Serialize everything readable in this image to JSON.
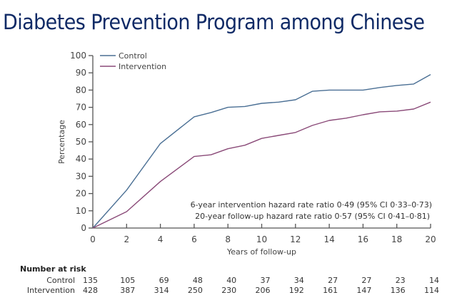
{
  "slide": {
    "title": "Diabetes Prevention Program among Chinese"
  },
  "chart_data": {
    "type": "line",
    "title": "Diabetes Prevention Program among Chinese",
    "xlabel": "Years of follow-up",
    "ylabel": "Percentage",
    "xlim": [
      0,
      20
    ],
    "ylim": [
      0,
      100
    ],
    "xticks": [
      0,
      2,
      4,
      6,
      8,
      10,
      12,
      14,
      16,
      18,
      20
    ],
    "yticks": [
      0,
      10,
      20,
      30,
      40,
      50,
      60,
      70,
      80,
      90,
      100
    ],
    "grid": false,
    "legend_position": "top-left",
    "colors": {
      "Control": "#4a6f94",
      "Intervention": "#8a4a78"
    },
    "series": [
      {
        "name": "Control",
        "x": [
          0,
          2,
          4,
          6,
          7,
          8,
          9,
          10,
          11,
          12,
          13,
          14,
          15,
          16,
          17,
          18,
          19,
          20
        ],
        "y": [
          0,
          22,
          49,
          64.5,
          67,
          70,
          70.5,
          72.3,
          73,
          74.4,
          79.3,
          80,
          80,
          80,
          81.5,
          82.7,
          83.5,
          89
        ]
      },
      {
        "name": "Intervention",
        "x": [
          0,
          2,
          4,
          6,
          7,
          8,
          9,
          10,
          11,
          12,
          13,
          14,
          15,
          16,
          17,
          18,
          19,
          20
        ],
        "y": [
          0,
          9.5,
          27,
          41.5,
          42.5,
          46,
          48,
          52,
          53.7,
          55.4,
          59.5,
          62.4,
          63.7,
          65.7,
          67.4,
          67.8,
          69,
          73
        ]
      }
    ],
    "annotations": [
      "6-year intervention hazard rate ratio 0·49 (95% CI 0·33–0·73)",
      "20-year follow-up hazard rate ratio 0·57 (95% CI 0·41–0·81)"
    ],
    "risk_table": {
      "heading": "Number at risk",
      "years": [
        0,
        2,
        4,
        6,
        8,
        10,
        12,
        14,
        16,
        18,
        20
      ],
      "rows": [
        {
          "label": "Control",
          "values": [
            135,
            105,
            69,
            48,
            40,
            37,
            34,
            27,
            27,
            23,
            14
          ]
        },
        {
          "label": "Intervention",
          "values": [
            428,
            387,
            314,
            250,
            230,
            206,
            192,
            161,
            147,
            136,
            114
          ]
        }
      ]
    }
  }
}
